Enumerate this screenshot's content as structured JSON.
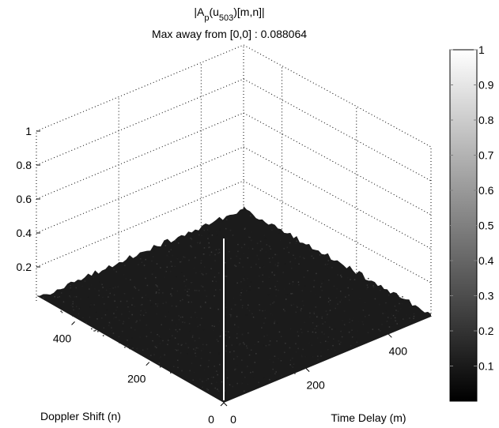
{
  "chart_data": {
    "type": "surface",
    "title": {
      "prefix": "|A",
      "sub1": "p",
      "mid": "(u",
      "sub2": "503",
      "suffix": ")[m,n]|"
    },
    "subtitle": "Max away from [0,0] : 0.088064",
    "xlabel": "Time Delay (m)",
    "ylabel": "Doppler Shift (n)",
    "zlabel": "",
    "x_ticks": [
      "0",
      "200",
      "400"
    ],
    "y_ticks": [
      "0",
      "200",
      "400"
    ],
    "z_ticks": [
      "0.2",
      "0.4",
      "0.6",
      "0.8",
      "1"
    ],
    "x_range": [
      0,
      503
    ],
    "y_range": [
      0,
      503
    ],
    "z_range": [
      0,
      1
    ],
    "grid": true,
    "peak": {
      "m": 0,
      "n": 0,
      "value": 1
    },
    "max_sidelobe": 0.088064,
    "colormap": "gray",
    "colorbar": {
      "ticks": [
        "0.1",
        "0.2",
        "0.3",
        "0.4",
        "0.5",
        "0.6",
        "0.7",
        "0.8",
        "0.9",
        "1"
      ],
      "range": [
        0,
        1
      ],
      "placement": "right"
    },
    "colors": {
      "surface": "#1b1b1b",
      "peak": "#ffffff",
      "grid": "#000000"
    }
  }
}
